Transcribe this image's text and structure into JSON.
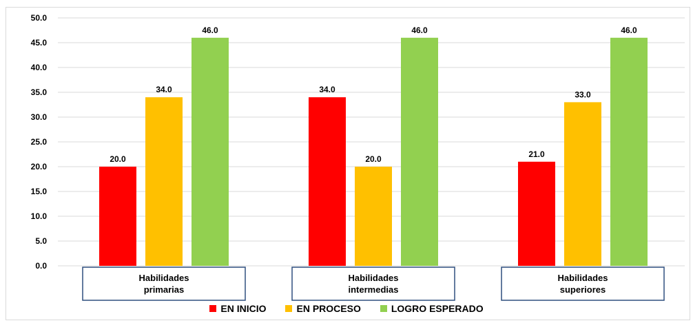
{
  "chart_data": {
    "type": "bar",
    "categories": [
      [
        "Habilidades",
        "primarias"
      ],
      [
        "Habilidades",
        "intermedias"
      ],
      [
        "Habilidades",
        "superiores"
      ]
    ],
    "series": [
      {
        "name": "EN INICIO",
        "color": "#ff0000",
        "values": [
          20.0,
          34.0,
          21.0
        ]
      },
      {
        "name": "EN PROCESO",
        "color": "#ffc000",
        "values": [
          34.0,
          20.0,
          33.0
        ]
      },
      {
        "name": "LOGRO ESPERADO",
        "color": "#92d050",
        "values": [
          46.0,
          46.0,
          46.0
        ]
      }
    ],
    "ylim": [
      0,
      50
    ],
    "ytick_step": 5,
    "value_format_decimals": 1,
    "grid": true,
    "legend_position": "bottom",
    "category_box_border_color": "#2f4f7f"
  }
}
